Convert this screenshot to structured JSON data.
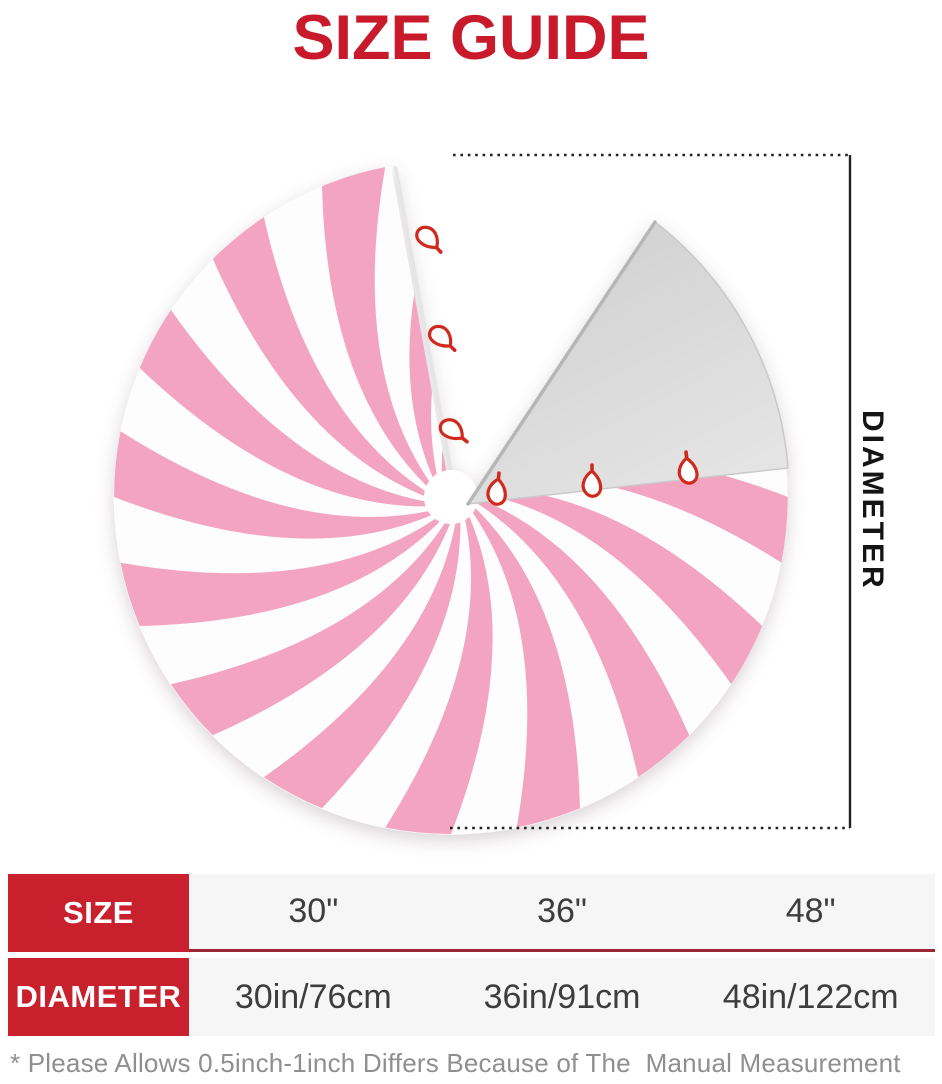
{
  "title": "SIZE GUIDE",
  "diagram": {
    "diameter_label": "DIAMETER",
    "skirt_description": "pink and white peppermint swirl christmas tree skirt with open slit, grey folded flap and red tie loops",
    "colors": {
      "title_red": "#c81a2b",
      "table_red": "#c9202e",
      "divider_red": "#9c2733",
      "pink": "#f3a4c0",
      "stripe_white": "#fdfdfd",
      "wedge_grey_dark": "#d4d4d4",
      "wedge_grey_light": "#e9e9e9",
      "loop_red": "#d02a1e",
      "line_black": "#222222",
      "row_bg": "#f6f6f7",
      "value_text": "#3d3d3d",
      "footnote_grey": "#8f8f8f"
    }
  },
  "size_table": {
    "rows": [
      {
        "header": "SIZE",
        "values": [
          "30\"",
          "36\"",
          "48\""
        ]
      },
      {
        "header": "DIAMETER",
        "values": [
          "30in/76cm",
          "36in/91cm",
          "48in/122cm"
        ]
      }
    ]
  },
  "footnote": "* Please Allows 0.5inch-1inch Differs Because of The  Manual Measurement"
}
